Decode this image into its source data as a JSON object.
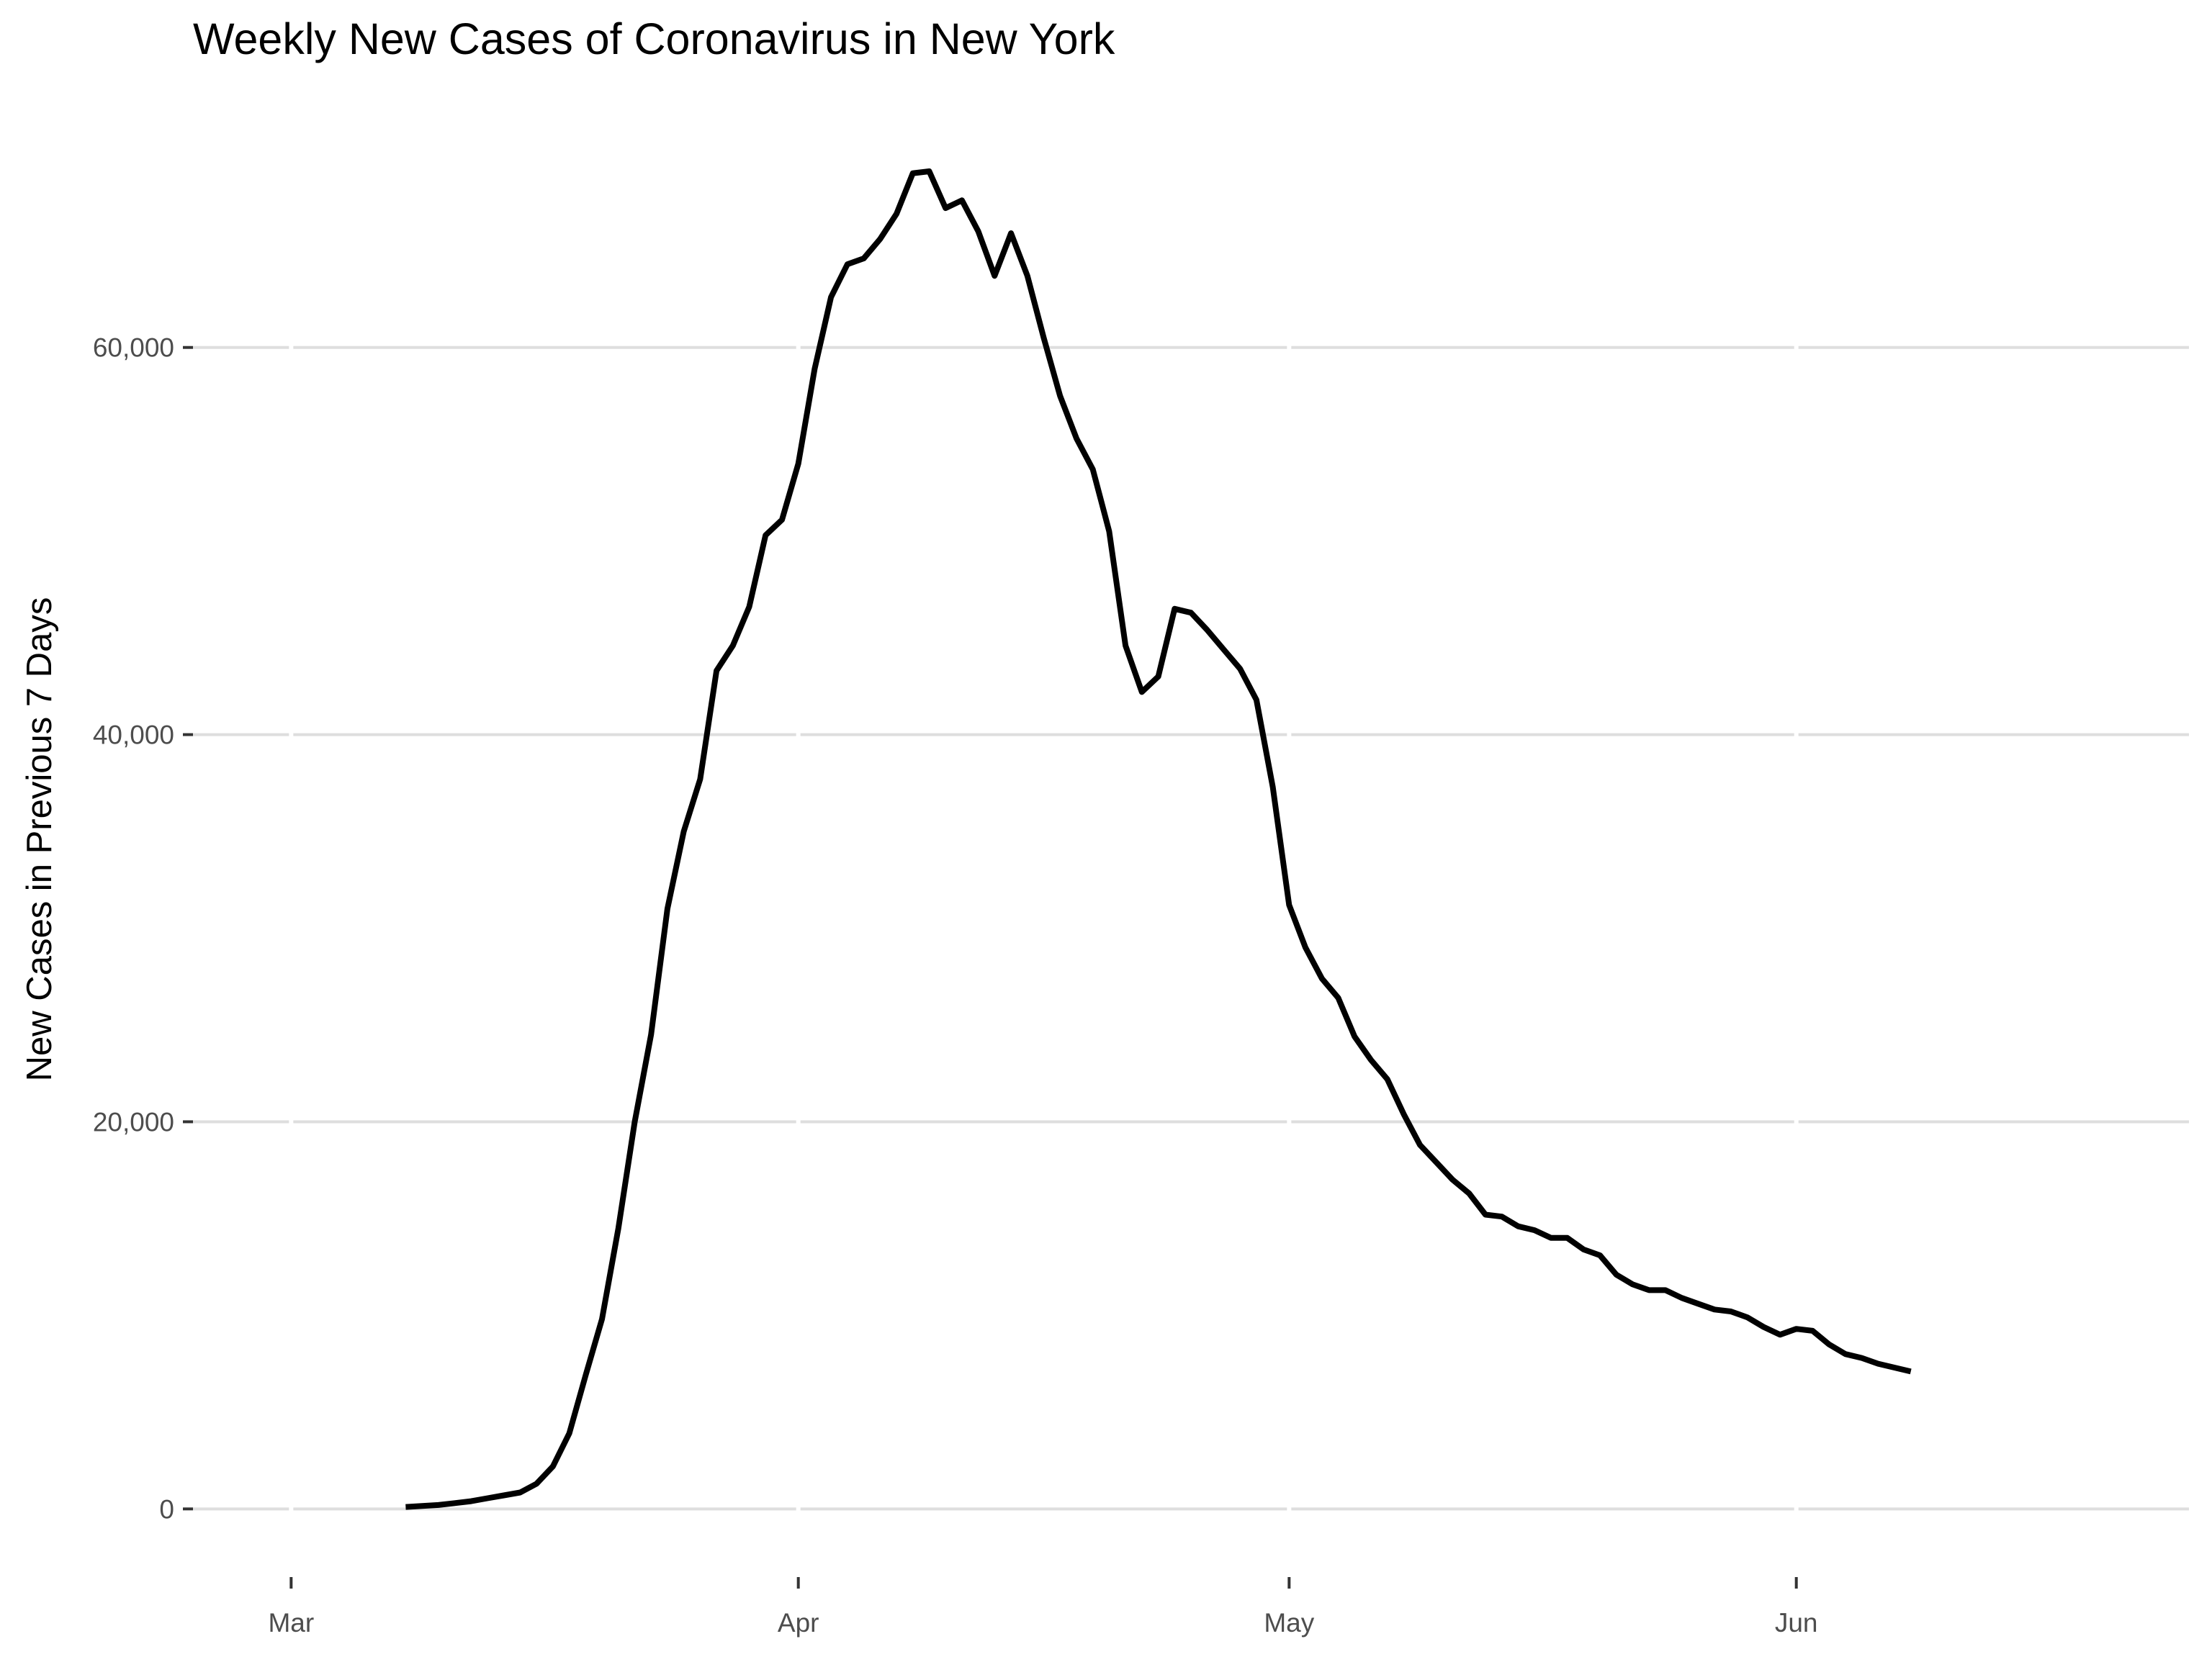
{
  "chart_data": {
    "type": "line",
    "title": "Weekly New Cases of Coronavirus in New York",
    "xlabel": "",
    "ylabel": "New Cases in Previous 7 Days",
    "x_ticks": [
      {
        "label": "Mar",
        "date": "2020-03-01"
      },
      {
        "label": "Apr",
        "date": "2020-04-01"
      },
      {
        "label": "May",
        "date": "2020-05-01"
      },
      {
        "label": "Jun",
        "date": "2020-06-01"
      }
    ],
    "y_ticks": [
      {
        "label": "0",
        "value": 0
      },
      {
        "label": "20,000",
        "value": 20000
      },
      {
        "label": "40,000",
        "value": 40000
      },
      {
        "label": "60,000",
        "value": 60000
      }
    ],
    "xlim": [
      "2020-02-24",
      "2020-06-25"
    ],
    "ylim": [
      -3000,
      72000
    ],
    "grid": true,
    "line_color": "#000000",
    "grid_color": "#dedede",
    "text_color": "#000000",
    "tick_label_color": "#4d4d4d",
    "series": [
      {
        "x": [
          "2020-03-08",
          "2020-03-09",
          "2020-03-10",
          "2020-03-11",
          "2020-03-12",
          "2020-03-13",
          "2020-03-14",
          "2020-03-15",
          "2020-03-16",
          "2020-03-17",
          "2020-03-18",
          "2020-03-19",
          "2020-03-20",
          "2020-03-21",
          "2020-03-22",
          "2020-03-23",
          "2020-03-24",
          "2020-03-25",
          "2020-03-26",
          "2020-03-27",
          "2020-03-28",
          "2020-03-29",
          "2020-03-30",
          "2020-03-31",
          "2020-04-01",
          "2020-04-02",
          "2020-04-03",
          "2020-04-04",
          "2020-04-05",
          "2020-04-06",
          "2020-04-07",
          "2020-04-08",
          "2020-04-09",
          "2020-04-10",
          "2020-04-11",
          "2020-04-12",
          "2020-04-13",
          "2020-04-14",
          "2020-04-15",
          "2020-04-16",
          "2020-04-17",
          "2020-04-18",
          "2020-04-19",
          "2020-04-20",
          "2020-04-21",
          "2020-04-22",
          "2020-04-23",
          "2020-04-24",
          "2020-04-25",
          "2020-04-26",
          "2020-04-27",
          "2020-04-28",
          "2020-04-29",
          "2020-04-30",
          "2020-05-01",
          "2020-05-02",
          "2020-05-03",
          "2020-05-04",
          "2020-05-05",
          "2020-05-06",
          "2020-05-07",
          "2020-05-08",
          "2020-05-09",
          "2020-05-10",
          "2020-05-11",
          "2020-05-12",
          "2020-05-13",
          "2020-05-14",
          "2020-05-15",
          "2020-05-16",
          "2020-05-17",
          "2020-05-18",
          "2020-05-19",
          "2020-05-20",
          "2020-05-21",
          "2020-05-22",
          "2020-05-23",
          "2020-05-24",
          "2020-05-25",
          "2020-05-26",
          "2020-05-27",
          "2020-05-28",
          "2020-05-29",
          "2020-05-30",
          "2020-05-31",
          "2020-06-01",
          "2020-06-02",
          "2020-06-03",
          "2020-06-04",
          "2020-06-05",
          "2020-06-06",
          "2020-06-07",
          "2020-06-08"
        ],
        "y": [
          100,
          150,
          200,
          300,
          400,
          550,
          700,
          850,
          1300,
          2200,
          3900,
          6900,
          9800,
          14500,
          20000,
          24500,
          31000,
          35000,
          37700,
          43300,
          44600,
          46600,
          50300,
          51100,
          54000,
          58900,
          62600,
          64300,
          64600,
          65600,
          66900,
          69000,
          69100,
          67200,
          67600,
          66000,
          63700,
          65900,
          63700,
          60500,
          57500,
          55300,
          53700,
          50500,
          44600,
          42200,
          43000,
          46500,
          46300,
          45400,
          44400,
          43400,
          41800,
          37300,
          31200,
          29000,
          27400,
          26400,
          24400,
          23200,
          22200,
          20400,
          18800,
          17900,
          17000,
          16300,
          15200,
          15100,
          14600,
          14400,
          14000,
          14000,
          13400,
          13100,
          12100,
          11600,
          11300,
          11300,
          10900,
          10600,
          10300,
          10200,
          9900,
          9400,
          9000,
          9300,
          9200,
          8500,
          8000,
          7800,
          7500,
          7300,
          7100
        ]
      }
    ]
  }
}
